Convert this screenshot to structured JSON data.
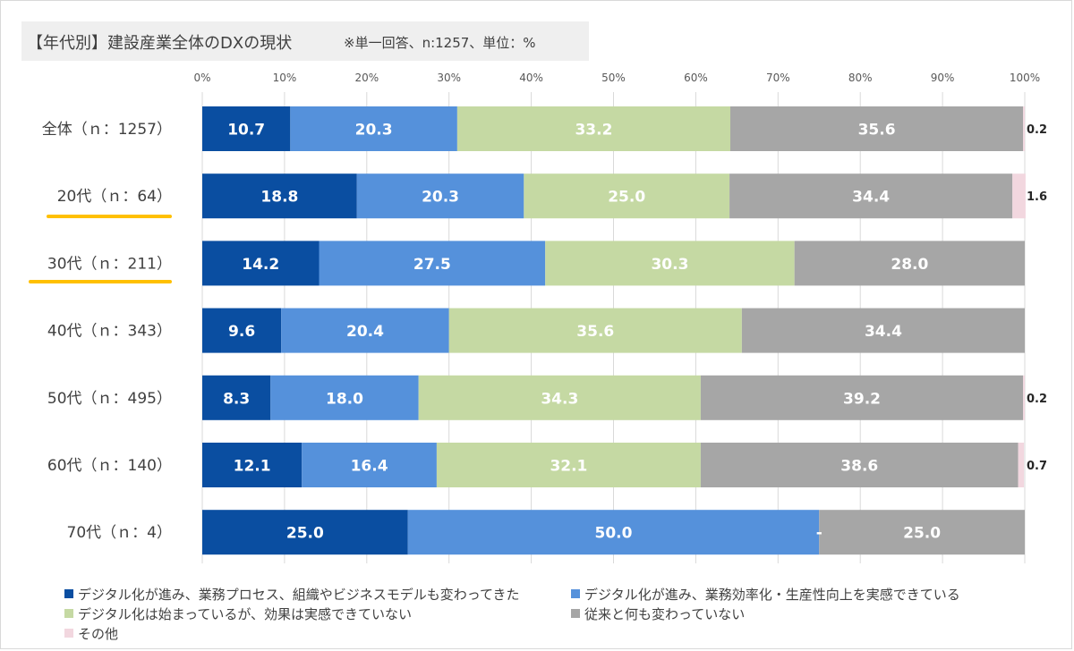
{
  "title": {
    "main": "【年代別】建設産業全体のDXの現状",
    "note": "※単一回答、n:1257、単位：%"
  },
  "colors": {
    "series": [
      "#0a4ea1",
      "#5591db",
      "#c5d9a3",
      "#a6a6a6",
      "#f2d7df"
    ],
    "label_on_dark": "#ffffff",
    "label_on_light": "#ffffff",
    "highlight_underline": "#ffc000"
  },
  "chart_data": {
    "type": "bar",
    "orientation": "horizontal",
    "stacked": "100%",
    "x_ticks": [
      "0%",
      "10%",
      "20%",
      "30%",
      "40%",
      "50%",
      "60%",
      "70%",
      "80%",
      "90%",
      "100%"
    ],
    "xlim": [
      0,
      100
    ],
    "grid": "vertical",
    "legend_position": "bottom",
    "categories": [
      "全体（ｎ：1257）",
      "20代（ｎ：64）",
      "30代（ｎ：211）",
      "40代（ｎ：343）",
      "50代（ｎ：495）",
      "60代（ｎ：140）",
      "70代（ｎ：4）"
    ],
    "highlighted_categories": [
      1,
      2
    ],
    "series": [
      {
        "name": "デジタル化が進み、業務プロセス、組織やビジネスモデルも変わってきた",
        "values": [
          10.7,
          18.8,
          14.2,
          9.6,
          8.3,
          12.1,
          25.0
        ]
      },
      {
        "name": "デジタル化が進み、業務効率化・生産性向上を実感できている",
        "values": [
          20.3,
          20.3,
          27.5,
          20.4,
          18.0,
          16.4,
          50.0
        ]
      },
      {
        "name": "デジタル化は始まっているが、効果は実感できていない",
        "values": [
          33.2,
          25.0,
          30.3,
          35.6,
          34.3,
          32.1,
          0
        ]
      },
      {
        "name": "従来と何も変わっていない",
        "values": [
          35.6,
          34.4,
          28.0,
          34.4,
          39.2,
          38.6,
          25.0
        ]
      },
      {
        "name": "その他",
        "values": [
          0.2,
          1.6,
          0,
          0,
          0.2,
          0.7,
          0
        ]
      }
    ],
    "zero_marker": "-",
    "zero_marker_rows": [
      6
    ]
  }
}
